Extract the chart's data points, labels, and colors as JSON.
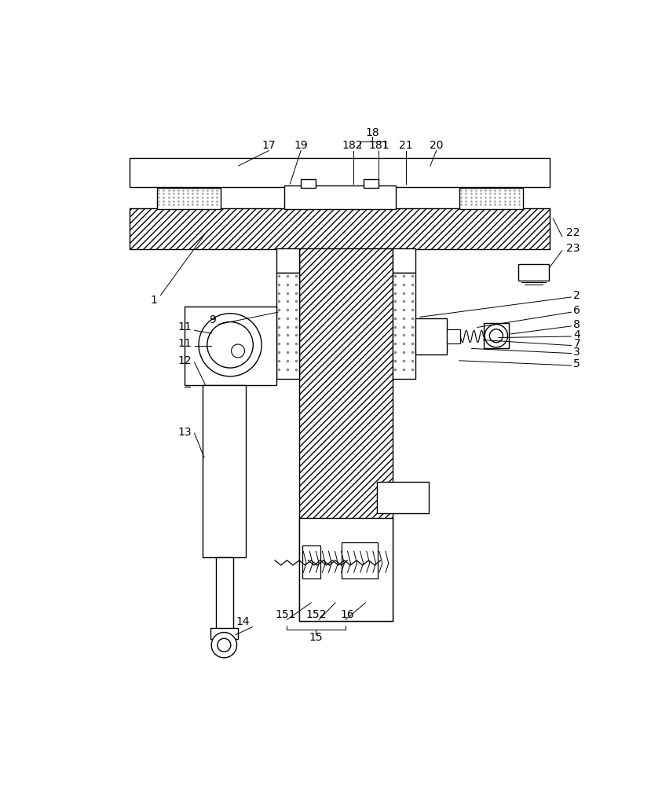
{
  "bg": "#ffffff",
  "lw": 1.0,
  "alw": 0.7,
  "fs": 10,
  "fig_w": 8.43,
  "fig_h": 10.0,
  "dpi": 100
}
